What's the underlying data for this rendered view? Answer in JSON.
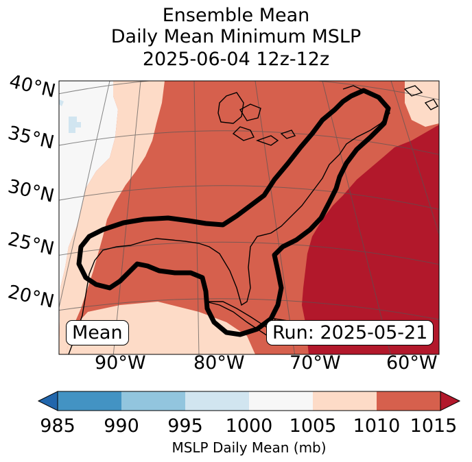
{
  "title": {
    "line1": "Ensemble Mean",
    "line2": "Daily Mean Minimum MSLP",
    "line3": "2025-06-04 12z-12z"
  },
  "map": {
    "latitude_labels": [
      "40°N",
      "35°N",
      "30°N",
      "25°N",
      "20°N"
    ],
    "longitude_labels": [
      "90°W",
      "80°W",
      "70°W",
      "60°W"
    ],
    "mean_box_label": "Mean",
    "run_box_label": "Run: 2025-05-21",
    "contour_color": "#000000",
    "fill_colors": {
      "995-1000": "#d1e5f0",
      "1000-1005": "#f7f7f7",
      "1005-1010": "#fddbc7",
      "1010-1015": "#d6604d",
      "above-1015": "#b2182b"
    }
  },
  "colorbar": {
    "label": "MSLP Daily Mean (mb)",
    "ticks": [
      "985",
      "990",
      "995",
      "1000",
      "1005",
      "1010",
      "1015"
    ],
    "under_color": "#2166ac",
    "over_color": "#b2182b",
    "segment_colors": [
      "#4393c3",
      "#92c5de",
      "#d1e5f0",
      "#f7f7f7",
      "#fddbc7",
      "#d6604d"
    ]
  }
}
